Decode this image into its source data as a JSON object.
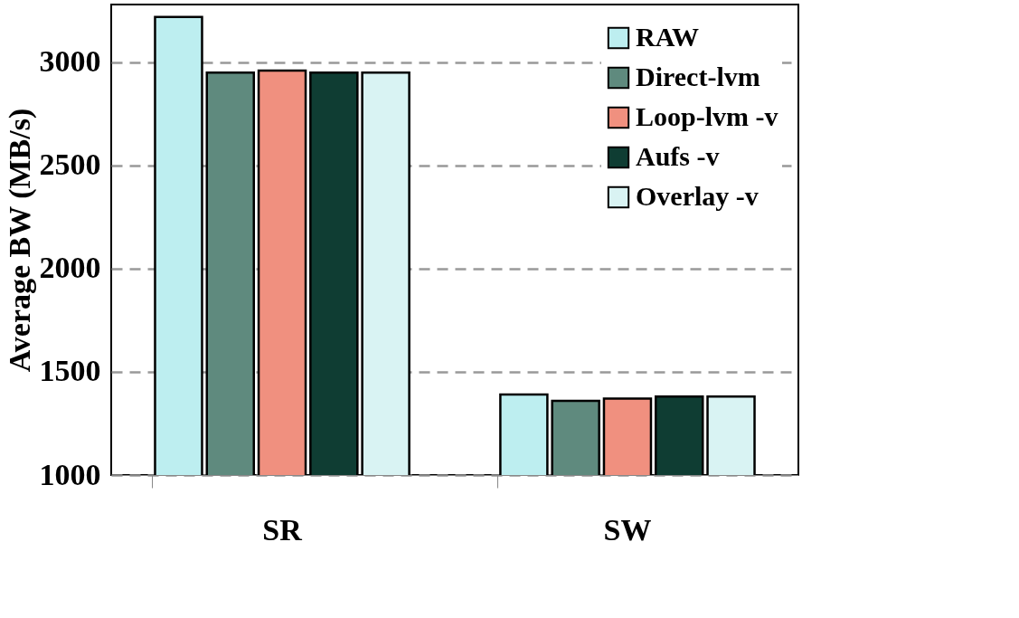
{
  "chart_data": {
    "type": "bar",
    "ylabel": "Average BW (MB/s)",
    "categories": [
      "SR",
      "SW"
    ],
    "series": [
      {
        "name": "RAW",
        "color": "#bdeef0",
        "values": [
          3220,
          1390
        ]
      },
      {
        "name": "Direct-lvm",
        "color": "#5f8a7e",
        "values": [
          2950,
          1360
        ]
      },
      {
        "name": "Loop-lvm -v",
        "color": "#f0907f",
        "values": [
          2960,
          1370
        ]
      },
      {
        "name": "Aufs -v",
        "color": "#0f3d33",
        "values": [
          2950,
          1380
        ]
      },
      {
        "name": "Overlay -v",
        "color": "#d9f3f3",
        "values": [
          2950,
          1380
        ]
      }
    ],
    "ylim": [
      1000,
      3280
    ],
    "yticks": [
      1000,
      1500,
      2000,
      2500,
      3000
    ],
    "grid": "y",
    "legend": "top right"
  }
}
